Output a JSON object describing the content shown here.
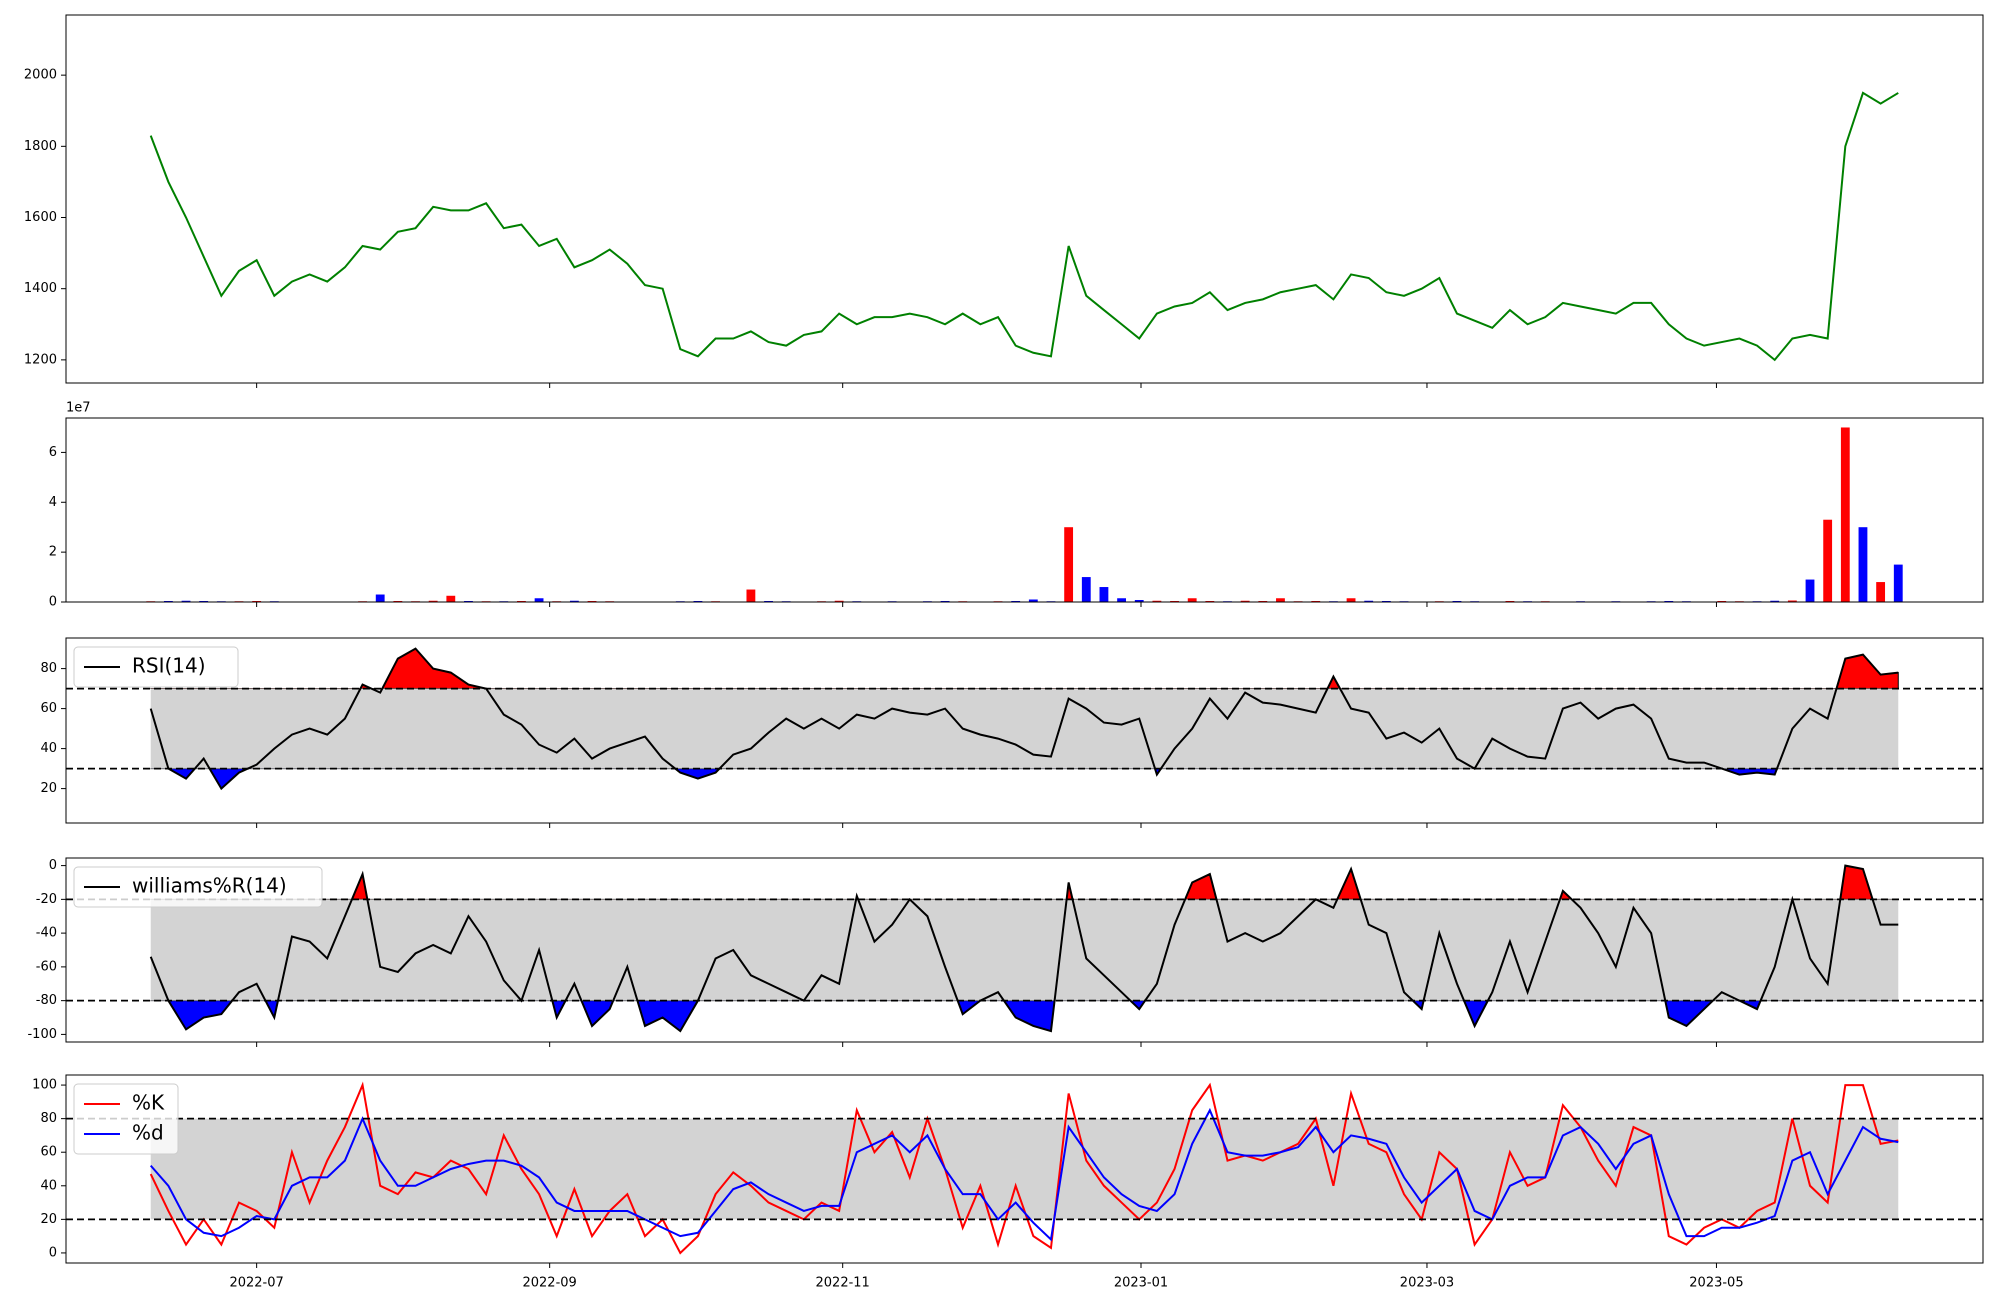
{
  "chart_data": [
    {
      "type": "line",
      "series": [
        {
          "color": "#008000",
          "values": [
            1830,
            1700,
            1600,
            1490,
            1380,
            1450,
            1480,
            1380,
            1420,
            1440,
            1420,
            1460,
            1520,
            1510,
            1560,
            1570,
            1630,
            1620,
            1620,
            1640,
            1570,
            1580,
            1520,
            1540,
            1460,
            1480,
            1510,
            1470,
            1410,
            1400,
            1230,
            1210,
            1260,
            1260,
            1280,
            1250,
            1240,
            1270,
            1280,
            1330,
            1300,
            1320,
            1320,
            1330,
            1320,
            1300,
            1330,
            1300,
            1320,
            1240,
            1220,
            1210,
            1520,
            1380,
            1340,
            1300,
            1260,
            1330,
            1350,
            1360,
            1390,
            1340,
            1360,
            1370,
            1390,
            1400,
            1410,
            1370,
            1440,
            1430,
            1390,
            1380,
            1400,
            1430,
            1330,
            1310,
            1290,
            1340,
            1300,
            1320,
            1360,
            1350,
            1340,
            1330,
            1360,
            1360,
            1300,
            1260,
            1240,
            1250,
            1260,
            1240,
            1200,
            1260,
            1270,
            1260,
            1800,
            1950,
            1920,
            1950
          ]
        }
      ],
      "xlim": [
        -4.8,
        103.8
      ],
      "ylim": [
        1135,
        2169
      ],
      "yticks": [
        1200,
        1400,
        1600,
        1800,
        2000
      ]
    },
    {
      "type": "bar",
      "values": [
        300000,
        400000,
        500000,
        400000,
        300000,
        300000,
        400000,
        300000,
        200000,
        200000,
        200000,
        200000,
        300000,
        3000000,
        400000,
        300000,
        500000,
        2500000,
        400000,
        300000,
        300000,
        400000,
        1500000,
        300000,
        500000,
        400000,
        300000,
        200000,
        200000,
        200000,
        300000,
        400000,
        300000,
        200000,
        5000000,
        400000,
        300000,
        200000,
        300000,
        500000,
        300000,
        200000,
        300000,
        200000,
        300000,
        400000,
        300000,
        200000,
        300000,
        400000,
        1000000,
        300000,
        30000000,
        10000000,
        6000000,
        1500000,
        800000,
        500000,
        400000,
        1500000,
        400000,
        300000,
        500000,
        400000,
        1500000,
        300000,
        400000,
        300000,
        1500000,
        500000,
        400000,
        300000,
        200000,
        300000,
        400000,
        300000,
        200000,
        400000,
        300000,
        300000,
        200000,
        300000,
        200000,
        300000,
        200000,
        300000,
        400000,
        300000,
        200000,
        400000,
        300000,
        300000,
        500000,
        600000,
        9000000,
        33000000,
        70000000,
        30000000,
        8000000,
        15000000
      ],
      "colors": [
        "red",
        "blue",
        "blue",
        "blue",
        "blue",
        "red",
        "red",
        "blue",
        "red",
        "red",
        "blue",
        "red",
        "red",
        "blue",
        "red",
        "red",
        "red",
        "red",
        "blue",
        "red",
        "blue",
        "red",
        "blue",
        "red",
        "blue",
        "red",
        "red",
        "blue",
        "blue",
        "blue",
        "blue",
        "blue",
        "red",
        "blue",
        "red",
        "blue",
        "blue",
        "red",
        "red",
        "red",
        "blue",
        "red",
        "blue",
        "red",
        "blue",
        "blue",
        "red",
        "blue",
        "red",
        "blue",
        "blue",
        "blue",
        "red",
        "blue",
        "blue",
        "blue",
        "blue",
        "red",
        "red",
        "red",
        "red",
        "blue",
        "red",
        "red",
        "red",
        "red",
        "red",
        "blue",
        "red",
        "blue",
        "blue",
        "blue",
        "red",
        "red",
        "blue",
        "blue",
        "blue",
        "red",
        "blue",
        "red",
        "red",
        "blue",
        "blue",
        "blue",
        "red",
        "blue",
        "blue",
        "blue",
        "blue",
        "red",
        "red",
        "blue",
        "blue",
        "red",
        "blue",
        "red",
        "red",
        "blue",
        "red",
        "blue"
      ],
      "offset_label": "1e7",
      "xlim": [
        -4.8,
        103.8
      ],
      "ylim": [
        0,
        73800000
      ],
      "yticks": [
        0,
        {
          "value": 20000000,
          "label": "2"
        },
        {
          "value": 40000000,
          "label": "4"
        },
        {
          "value": 60000000,
          "label": "6"
        }
      ]
    },
    {
      "type": "band",
      "series": [
        {
          "name": "RSI(14)",
          "color": "black",
          "values": [
            60,
            30,
            25,
            35,
            20,
            28,
            32,
            40,
            47,
            50,
            47,
            55,
            72,
            68,
            85,
            90,
            80,
            78,
            72,
            70,
            57,
            52,
            42,
            38,
            45,
            35,
            40,
            43,
            46,
            35,
            28,
            25,
            28,
            37,
            40,
            48,
            55,
            50,
            55,
            50,
            57,
            55,
            60,
            58,
            57,
            60,
            50,
            47,
            45,
            42,
            37,
            36,
            65,
            60,
            53,
            52,
            55,
            27,
            40,
            50,
            65,
            55,
            68,
            63,
            62,
            60,
            58,
            76,
            60,
            58,
            45,
            48,
            43,
            50,
            35,
            30,
            45,
            40,
            36,
            35,
            60,
            63,
            55,
            60,
            62,
            55,
            35,
            33,
            33,
            30,
            27,
            28,
            27,
            50,
            60,
            55,
            85,
            87,
            77,
            78
          ]
        }
      ],
      "levels": [
        30,
        70
      ],
      "band_color": "#d3d3d3",
      "above_color": "red",
      "below_color": "blue",
      "legend": "upper left",
      "xlim": [
        -4.8,
        103.8
      ],
      "ylim": [
        2.8,
        95.3
      ],
      "yticks": [
        20,
        40,
        60,
        80
      ]
    },
    {
      "type": "band",
      "series": [
        {
          "name": "williams%R(14)",
          "color": "black",
          "values": [
            -54,
            -80,
            -97,
            -90,
            -88,
            -75,
            -70,
            -90,
            -42,
            -45,
            -55,
            -30,
            -5,
            -60,
            -63,
            -52,
            -47,
            -52,
            -30,
            -45,
            -68,
            -80,
            -50,
            -90,
            -70,
            -95,
            -85,
            -60,
            -95,
            -90,
            -98,
            -80,
            -55,
            -50,
            -65,
            -70,
            -75,
            -80,
            -65,
            -70,
            -18,
            -45,
            -35,
            -20,
            -30,
            -60,
            -88,
            -80,
            -75,
            -90,
            -95,
            -98,
            -10,
            -55,
            -65,
            -75,
            -85,
            -70,
            -35,
            -10,
            -5,
            -45,
            -40,
            -45,
            -40,
            -30,
            -20,
            -25,
            -2,
            -35,
            -40,
            -75,
            -85,
            -40,
            -70,
            -95,
            -75,
            -45,
            -75,
            -45,
            -15,
            -25,
            -40,
            -60,
            -25,
            -40,
            -90,
            -95,
            -85,
            -75,
            -80,
            -85,
            -60,
            -20,
            -55,
            -70,
            0,
            -2,
            -35,
            -35
          ]
        }
      ],
      "levels": [
        -80,
        -20
      ],
      "band_color": "#d3d3d3",
      "above_color": "red",
      "below_color": "blue",
      "legend": "upper left",
      "xlim": [
        -4.8,
        103.8
      ],
      "ylim": [
        -104.5,
        4.5
      ],
      "yticks": [
        -100,
        -80,
        -60,
        -40,
        -20,
        0
      ]
    },
    {
      "type": "band",
      "series": [
        {
          "name": "%K",
          "color": "red",
          "values": [
            47,
            25,
            5,
            20,
            5,
            30,
            25,
            15,
            60,
            30,
            55,
            75,
            100,
            40,
            35,
            48,
            45,
            55,
            50,
            35,
            70,
            50,
            35,
            10,
            38,
            10,
            25,
            35,
            10,
            20,
            0,
            10,
            35,
            48,
            40,
            30,
            25,
            20,
            30,
            25,
            85,
            60,
            72,
            45,
            80,
            50,
            15,
            40,
            5,
            40,
            10,
            3,
            95,
            55,
            40,
            30,
            20,
            30,
            50,
            85,
            100,
            55,
            58,
            55,
            60,
            65,
            80,
            40,
            95,
            65,
            60,
            35,
            20,
            60,
            50,
            5,
            20,
            60,
            40,
            45,
            88,
            75,
            55,
            40,
            75,
            70,
            10,
            5,
            15,
            20,
            15,
            25,
            30,
            80,
            40,
            30,
            100,
            100,
            65,
            67
          ]
        },
        {
          "name": "%d",
          "color": "blue",
          "values": [
            52,
            40,
            20,
            12,
            10,
            15,
            22,
            20,
            40,
            45,
            45,
            55,
            80,
            55,
            40,
            40,
            45,
            50,
            53,
            55,
            55,
            52,
            45,
            30,
            25,
            25,
            25,
            25,
            20,
            15,
            10,
            12,
            25,
            38,
            42,
            35,
            30,
            25,
            28,
            28,
            60,
            65,
            70,
            60,
            70,
            50,
            35,
            35,
            20,
            30,
            18,
            8,
            75,
            60,
            45,
            35,
            28,
            25,
            35,
            65,
            85,
            60,
            58,
            58,
            60,
            63,
            75,
            60,
            70,
            68,
            65,
            45,
            30,
            40,
            50,
            25,
            20,
            40,
            45,
            45,
            70,
            75,
            65,
            50,
            65,
            70,
            35,
            10,
            10,
            15,
            15,
            18,
            22,
            55,
            60,
            35,
            55,
            75,
            68,
            66
          ]
        }
      ],
      "levels": [
        20,
        80
      ],
      "band_color": "#d3d3d3",
      "legend": "upper left",
      "xlim": [
        -4.8,
        103.8
      ],
      "ylim": [
        -6,
        106
      ],
      "yticks": [
        0,
        20,
        40,
        60,
        80,
        100
      ],
      "xticks": [
        {
          "value": 6.0,
          "label": "2022-07"
        },
        {
          "value": 22.6,
          "label": "2022-09"
        },
        {
          "value": 39.2,
          "label": "2022-11"
        },
        {
          "value": 56.1,
          "label": "2023-01"
        },
        {
          "value": 72.3,
          "label": "2023-03"
        },
        {
          "value": 88.7,
          "label": "2023-05"
        }
      ]
    }
  ]
}
